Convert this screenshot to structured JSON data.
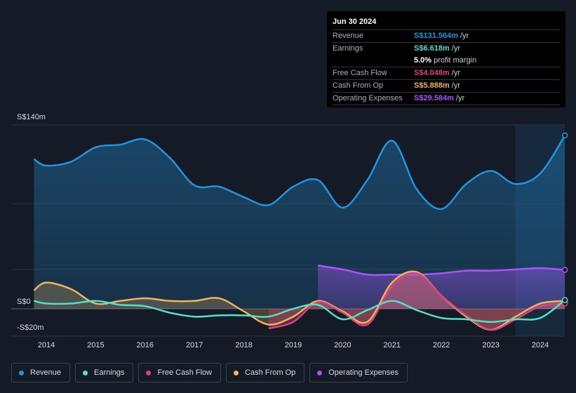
{
  "tooltip": {
    "date": "Jun 30 2024",
    "rows": [
      {
        "label": "Revenue",
        "value": "S$131.564m",
        "unit": "/yr",
        "color": "#2394df"
      },
      {
        "label": "Earnings",
        "value": "S$6.618m",
        "unit": "/yr",
        "color": "#56dfc7"
      },
      {
        "label": "",
        "value": "5.0%",
        "unit": "profit margin",
        "color": "#ffffff"
      },
      {
        "label": "Free Cash Flow",
        "value": "S$4.048m",
        "unit": "/yr",
        "color": "#d8437f"
      },
      {
        "label": "Cash From Op",
        "value": "S$5.888m",
        "unit": "/yr",
        "color": "#f0b35f"
      },
      {
        "label": "Operating Expenses",
        "value": "S$29.584m",
        "unit": "/yr",
        "color": "#a855f7"
      }
    ]
  },
  "legend": [
    {
      "label": "Revenue",
      "color": "#2394df"
    },
    {
      "label": "Earnings",
      "color": "#56dfc7"
    },
    {
      "label": "Free Cash Flow",
      "color": "#d8437f"
    },
    {
      "label": "Cash From Op",
      "color": "#f0b35f"
    },
    {
      "label": "Operating Expenses",
      "color": "#a855f7"
    }
  ],
  "chart_data": {
    "type": "line",
    "title": "",
    "units": "S$ millions",
    "ylim": [
      -20,
      140
    ],
    "y_tick_labels": [
      {
        "value": 140,
        "label": "S$140m"
      },
      {
        "value": 0,
        "label": "S$0"
      },
      {
        "value": -20,
        "label": "-S$20m"
      }
    ],
    "x_ticks": [
      2014,
      2015,
      2016,
      2017,
      2018,
      2019,
      2020,
      2021,
      2022,
      2023,
      2024
    ],
    "xlim": [
      2013.75,
      2024.5
    ],
    "highlight_start": 2023.5,
    "series": [
      {
        "name": "Revenue",
        "color": "#2394df",
        "fill": true,
        "x": [
          2013.75,
          2014.0,
          2014.5,
          2015.0,
          2015.5,
          2016.0,
          2016.5,
          2017.0,
          2017.5,
          2018.0,
          2018.5,
          2019.0,
          2019.5,
          2020.0,
          2020.5,
          2021.0,
          2021.5,
          2022.0,
          2022.5,
          2023.0,
          2023.5,
          2024.0,
          2024.5
        ],
        "y": [
          114,
          109,
          112,
          123,
          125,
          129,
          115,
          94,
          93,
          85,
          79,
          93,
          98,
          77,
          98,
          128,
          91,
          76,
          95,
          105,
          95,
          103,
          132
        ]
      },
      {
        "name": "Earnings",
        "color": "#56dfc7",
        "fill": false,
        "x": [
          2013.75,
          2014.0,
          2014.5,
          2015.0,
          2015.5,
          2016.0,
          2016.5,
          2017.0,
          2017.5,
          2018.0,
          2018.5,
          2019.0,
          2019.5,
          2020.0,
          2020.5,
          2021.0,
          2021.5,
          2022.0,
          2022.5,
          2023.0,
          2023.5,
          2024.0,
          2024.5
        ],
        "y": [
          6,
          4,
          4,
          6,
          3,
          2,
          -3,
          -6,
          -5,
          -5,
          -6,
          0,
          3,
          -8,
          -1,
          6,
          -1,
          -7,
          -8,
          -10,
          -8,
          -7,
          6.6
        ]
      },
      {
        "name": "Free Cash Flow",
        "color": "#d8437f",
        "fill": true,
        "x": [
          2018.5,
          2019.0,
          2019.5,
          2020.0,
          2020.5,
          2021.0,
          2021.5,
          2022.0,
          2022.5,
          2023.0,
          2023.5,
          2024.0,
          2024.5
        ],
        "y": [
          -15,
          -10,
          5,
          -3,
          -12,
          17,
          27,
          10,
          -5,
          -16,
          -8,
          2,
          4
        ]
      },
      {
        "name": "Cash From Op",
        "color": "#f0b35f",
        "fill": true,
        "x": [
          2013.75,
          2014.0,
          2014.5,
          2015.0,
          2015.5,
          2016.0,
          2016.5,
          2017.0,
          2017.5,
          2018.0,
          2018.5,
          2019.0,
          2019.5,
          2020.0,
          2020.5,
          2021.0,
          2021.5,
          2022.0,
          2022.5,
          2023.0,
          2023.5,
          2024.0,
          2024.5
        ],
        "y": [
          14,
          20,
          15,
          4,
          6,
          8,
          6,
          6,
          8,
          -2,
          -12,
          -6,
          6,
          -2,
          -10,
          20,
          28,
          10,
          -6,
          -16,
          -6,
          4,
          6
        ]
      },
      {
        "name": "Operating Expenses",
        "color": "#a855f7",
        "fill": true,
        "x": [
          2019.5,
          2020.0,
          2020.5,
          2021.0,
          2021.5,
          2022.0,
          2022.5,
          2023.0,
          2023.5,
          2024.0,
          2024.5
        ],
        "y": [
          33,
          30,
          26,
          26,
          26,
          27,
          29,
          29,
          30,
          31,
          29.6
        ]
      }
    ]
  }
}
